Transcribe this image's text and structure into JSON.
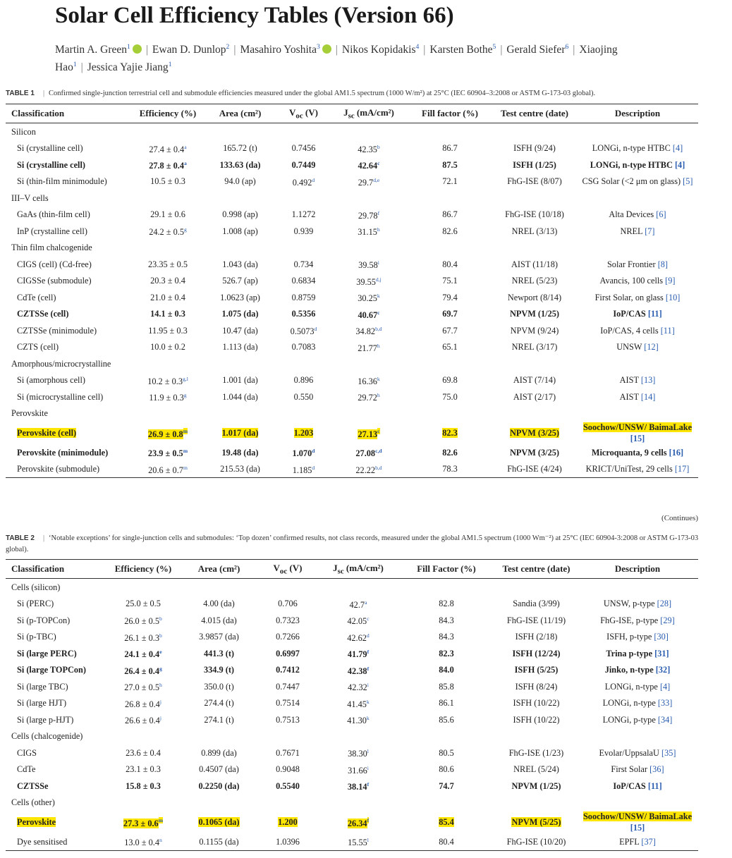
{
  "header": {
    "title": "Solar Cell Efficiency Tables (Version 66)",
    "authors": [
      {
        "name": "Martin A. Green",
        "sup": "1",
        "orcid": true
      },
      {
        "name": "Ewan D. Dunlop",
        "sup": "2"
      },
      {
        "name": "Masahiro Yoshita",
        "sup": "3",
        "orcid": true
      },
      {
        "name": "Nikos Kopidakis",
        "sup": "4"
      },
      {
        "name": "Karsten Bothe",
        "sup": "5"
      },
      {
        "name": "Gerald Siefer",
        "sup": "6"
      },
      {
        "name": "Xiaojing Hao",
        "sup": "1"
      },
      {
        "name": "Jessica Yajie Jiang",
        "sup": "1"
      }
    ]
  },
  "table1": {
    "label": "TABLE 1",
    "caption": "Confirmed single-junction terrestrial cell and submodule efficiencies measured under the global AM1.5 spectrum (1000 W/m²) at 25°C (IEC 60904–3:2008 or ASTM G-173-03 global).",
    "headers": [
      "Classification",
      "Efficiency (%)",
      "Area (cm²)",
      {
        "main": "V",
        "sub": "oc",
        "unit": " (V)"
      },
      {
        "main": "J",
        "sub": "sc",
        "unit": " (mA/cm²)"
      },
      "Fill factor (%)",
      "Test centre (date)",
      "Description"
    ],
    "rows": [
      {
        "section": "Silicon"
      },
      {
        "cells": [
          "Si (crystalline cell)",
          {
            "text": "27.4 ± 0.4",
            "sup": "a"
          },
          "165.72 (t)",
          "0.7456",
          {
            "text": "42.35",
            "sup": "b"
          },
          "86.7",
          "ISFH (9/24)",
          {
            "text": "LONGi, n-type HTBC",
            "ref": "[4]"
          }
        ]
      },
      {
        "cells": [
          "Si (crystalline cell)",
          {
            "text": "27.8 ± 0.4",
            "sup": "a"
          },
          "133.63 (da)",
          "0.7449",
          {
            "text": "42.64",
            "sup": "c"
          },
          "87.5",
          "ISFH (1/25)",
          {
            "text": "LONGi, n-type HTBC",
            "ref": "[4]"
          }
        ],
        "bold": true
      },
      {
        "cells": [
          "Si (thin-film minimodule)",
          "10.5 ± 0.3",
          "94.0 (ap)",
          {
            "text": "0.492",
            "sup": "d"
          },
          {
            "text": "29.7",
            "sup": "d,e"
          },
          "72.1",
          "FhG-ISE (8/07)",
          {
            "text": "CSG Solar (<2 μm on glass)",
            "ref": "[5]"
          }
        ]
      },
      {
        "section": "III–V cells"
      },
      {
        "cells": [
          "GaAs (thin-film cell)",
          "29.1 ± 0.6",
          "0.998 (ap)",
          "1.1272",
          {
            "text": "29.78",
            "sup": "f"
          },
          "86.7",
          "FhG-ISE (10/18)",
          {
            "text": "Alta Devices",
            "ref": "[6]"
          }
        ]
      },
      {
        "cells": [
          "InP (crystalline cell)",
          {
            "text": "24.2 ± 0.5",
            "sup": "g"
          },
          "1.008 (ap)",
          "0.939",
          {
            "text": "31.15",
            "sup": "h"
          },
          "82.6",
          "NREL (3/13)",
          {
            "text": "NREL",
            "ref": "[7]"
          }
        ]
      },
      {
        "section": "Thin film chalcogenide"
      },
      {
        "cells": [
          "CIGS (cell) (Cd-free)",
          "23.35 ± 0.5",
          "1.043 (da)",
          "0.734",
          {
            "text": "39.58",
            "sup": "i"
          },
          "80.4",
          "AIST (11/18)",
          {
            "text": "Solar Frontier",
            "ref": "[8]"
          }
        ]
      },
      {
        "cells": [
          "CIGSSe (submodule)",
          "20.3 ± 0.4",
          "526.7 (ap)",
          "0.6834",
          {
            "text": "39.55",
            "sup": "d,j"
          },
          "75.1",
          "NREL (5/23)",
          {
            "text": "Avancis, 100 cells",
            "ref": "[9]"
          }
        ]
      },
      {
        "cells": [
          "CdTe (cell)",
          "21.0 ± 0.4",
          "1.0623 (ap)",
          "0.8759",
          {
            "text": "30.25",
            "sup": "k"
          },
          "79.4",
          "Newport (8/14)",
          {
            "text": "First Solar, on glass",
            "ref": "[10]"
          }
        ]
      },
      {
        "cells": [
          "CZTSSe (cell)",
          "14.1 ± 0.3",
          "1.075 (da)",
          "0.5356",
          {
            "text": "40.67",
            "sup": "c"
          },
          "69.7",
          "NPVM (1/25)",
          {
            "text": "IoP/CAS",
            "ref": "[11]"
          }
        ],
        "bold": true
      },
      {
        "cells": [
          "CZTSSe (minimodule)",
          "11.95 ± 0.3",
          "10.47 (da)",
          {
            "text": "0.5073",
            "sup": "d"
          },
          {
            "text": "34.82",
            "sup": "b,d"
          },
          "67.7",
          "NPVM (9/24)",
          {
            "text": "IoP/CAS, 4 cells",
            "ref": "[11]"
          }
        ]
      },
      {
        "cells": [
          "CZTS (cell)",
          "10.0 ± 0.2",
          "1.113 (da)",
          "0.7083",
          {
            "text": "21.77",
            "sup": "h"
          },
          "65.1",
          "NREL (3/17)",
          {
            "text": "UNSW",
            "ref": "[12]"
          }
        ]
      },
      {
        "section": "Amorphous/microcrystalline"
      },
      {
        "cells": [
          "Si (amorphous cell)",
          {
            "text": "10.2 ± 0.3",
            "sup": "g,l"
          },
          "1.001 (da)",
          "0.896",
          {
            "text": "16.36",
            "sup": "k"
          },
          "69.8",
          "AIST (7/14)",
          {
            "text": "AIST",
            "ref": "[13]"
          }
        ]
      },
      {
        "cells": [
          "Si (microcrystalline cell)",
          {
            "text": "11.9 ± 0.3",
            "sup": "g"
          },
          "1.044 (da)",
          "0.550",
          {
            "text": "29.72",
            "sup": "h"
          },
          "75.0",
          "AIST (2/17)",
          {
            "text": "AIST",
            "ref": "[14]"
          }
        ]
      },
      {
        "section": "Perovskite"
      },
      {
        "cells": [
          "Perovskite (cell)",
          {
            "text": "26.9 ± 0.8",
            "sup": "m"
          },
          "1.017 (da)",
          "1.203",
          {
            "text": "27.13",
            "sup": "c"
          },
          "82.3",
          "NPVM (3/25)",
          {
            "text": "Soochow/UNSW/ BaimaLake",
            "ref": "[15]"
          }
        ],
        "bold": true,
        "highlight": true
      },
      {
        "cells": [
          "Perovskite (minimodule)",
          {
            "text": "23.9 ± 0.5",
            "sup": "m"
          },
          "19.48 (da)",
          {
            "text": "1.070",
            "sup": "d"
          },
          {
            "text": "27.08",
            "sup": "c,d"
          },
          "82.6",
          "NPVM (3/25)",
          {
            "text": "Microquanta, 9 cells",
            "ref": "[16]"
          }
        ],
        "bold": true
      },
      {
        "cells": [
          "Perovskite (submodule)",
          {
            "text": "20.6 ± 0.7",
            "sup": "m"
          },
          "215.53 (da)",
          {
            "text": "1.185",
            "sup": "d"
          },
          {
            "text": "22.22",
            "sup": "b,d"
          },
          "78.3",
          "FhG-ISE (4/24)",
          {
            "text": "KRICT/UniTest, 29 cells",
            "ref": "[17]"
          }
        ]
      }
    ],
    "note": "(Continues)"
  },
  "table2": {
    "label": "TABLE 2",
    "caption": "‘Notable exceptions’ for single-junction cells and submodules: ‘Top dozen’ confirmed results, not class records, measured under the global AM1.5 spectrum (1000 Wm⁻²) at 25°C (IEC 60904-3:2008 or ASTM G-173-03 global).",
    "headers": [
      "Classification",
      "Efficiency (%)",
      "Area (cm²)",
      {
        "main": "V",
        "sub": "oc",
        "unit": " (V)"
      },
      {
        "main": "J",
        "sub": "sc",
        "unit": " (mA/cm²)"
      },
      "Fill Factor (%)",
      "Test centre (date)",
      "Description"
    ],
    "rows": [
      {
        "section": "Cells (silicon)"
      },
      {
        "cells": [
          "Si (PERC)",
          "25.0 ± 0.5",
          "4.00 (da)",
          "0.706",
          {
            "text": "42.7",
            "sup": "a"
          },
          "82.8",
          "Sandia (3/99)",
          {
            "text": "UNSW, p-type",
            "ref": "[28]"
          }
        ]
      },
      {
        "cells": [
          "Si (p-TOPCon)",
          {
            "text": "26.0 ± 0.5",
            "sup": "b"
          },
          "4.015 (da)",
          "0.7323",
          {
            "text": "42.05",
            "sup": "c"
          },
          "84.3",
          "FhG-ISE (11/19)",
          {
            "text": "FhG-ISE, p-type",
            "ref": "[29]"
          }
        ]
      },
      {
        "cells": [
          "Si (p-TBC)",
          {
            "text": "26.1 ± 0.3",
            "sup": "b"
          },
          "3.9857 (da)",
          "0.7266",
          {
            "text": "42.62",
            "sup": "d"
          },
          "84.3",
          "ISFH (2/18)",
          {
            "text": "ISFH, p-type",
            "ref": "[30]"
          }
        ]
      },
      {
        "cells": [
          "Si (large PERC)",
          {
            "text": "24.1 ± 0.4",
            "sup": "e"
          },
          "441.3 (t)",
          "0.6997",
          {
            "text": "41.79",
            "sup": "f"
          },
          "82.3",
          "ISFH (12/24)",
          {
            "text": "Trina p-type",
            "ref": "[31]"
          }
        ],
        "bold": true
      },
      {
        "cells": [
          "Si (large TOPCon)",
          {
            "text": "26.4 ± 0.4",
            "sup": "g"
          },
          "334.9 (t)",
          "0.7412",
          {
            "text": "42.38",
            "sup": "f"
          },
          "84.0",
          "ISFH (5/25)",
          {
            "text": "Jinko, n-type",
            "ref": "[32]"
          }
        ],
        "bold": true
      },
      {
        "cells": [
          "Si (large TBC)",
          {
            "text": "27.0 ± 0.5",
            "sup": "h"
          },
          "350.0 (t)",
          "0.7447",
          {
            "text": "42.32",
            "sup": "i"
          },
          "85.8",
          "ISFH (8/24)",
          {
            "text": "LONGi, n-type",
            "ref": "[4]"
          }
        ]
      },
      {
        "cells": [
          "Si (large HJT)",
          {
            "text": "26.8 ± 0.4",
            "sup": "j"
          },
          "274.4 (t)",
          "0.7514",
          {
            "text": "41.45",
            "sup": "k"
          },
          "86.1",
          "ISFH (10/22)",
          {
            "text": "LONGi, n-type",
            "ref": "[33]"
          }
        ]
      },
      {
        "cells": [
          "Si (large p-HJT)",
          {
            "text": "26.6 ± 0.4",
            "sup": "j"
          },
          "274.1 (t)",
          "0.7513",
          {
            "text": "41.30",
            "sup": "k"
          },
          "85.6",
          "ISFH (10/22)",
          {
            "text": "LONGi, p-type",
            "ref": "[34]"
          }
        ]
      },
      {
        "section": "Cells (chalcogenide)"
      },
      {
        "cells": [
          "CIGS",
          "23.6 ± 0.4",
          "0.899 (da)",
          "0.7671",
          {
            "text": "38.30",
            "sup": "l"
          },
          "80.5",
          "FhG-ISE (1/23)",
          {
            "text": "Evolar/UppsalaU",
            "ref": "[35]"
          }
        ]
      },
      {
        "cells": [
          "CdTe",
          "23.1 ± 0.3",
          "0.4507 (da)",
          "0.9048",
          {
            "text": "31.66",
            "sup": "i"
          },
          "80.6",
          "NREL (5/24)",
          {
            "text": "First Solar",
            "ref": "[36]"
          }
        ]
      },
      {
        "cells": [
          "CZTSSe",
          "15.8 ± 0.3",
          "0.2250 (da)",
          "0.5540",
          {
            "text": "38.14",
            "sup": "f"
          },
          "74.7",
          "NPVM (1/25)",
          {
            "text": "IoP/CAS",
            "ref": "[11]"
          }
        ],
        "bold": true
      },
      {
        "section": "Cells (other)"
      },
      {
        "cells": [
          "Perovskite",
          {
            "text": "27.3 ± 0.6",
            "sup": "m"
          },
          "0.1065 (da)",
          "1.200",
          {
            "text": "26.34",
            "sup": "f"
          },
          "85.4",
          "NPVM (5/25)",
          {
            "text": "Soochow/UNSW/ BaimaLake",
            "ref": "[15]"
          }
        ],
        "bold": true,
        "highlight": true
      },
      {
        "cells": [
          "Dye sensitised",
          {
            "text": "13.0 ± 0.4",
            "sup": "n"
          },
          "0.1155 (da)",
          "1.0396",
          {
            "text": "15.55",
            "sup": "l"
          },
          "80.4",
          "FhG-ISE (10/20)",
          {
            "text": "EPFL",
            "ref": "[37]"
          }
        ]
      }
    ]
  }
}
